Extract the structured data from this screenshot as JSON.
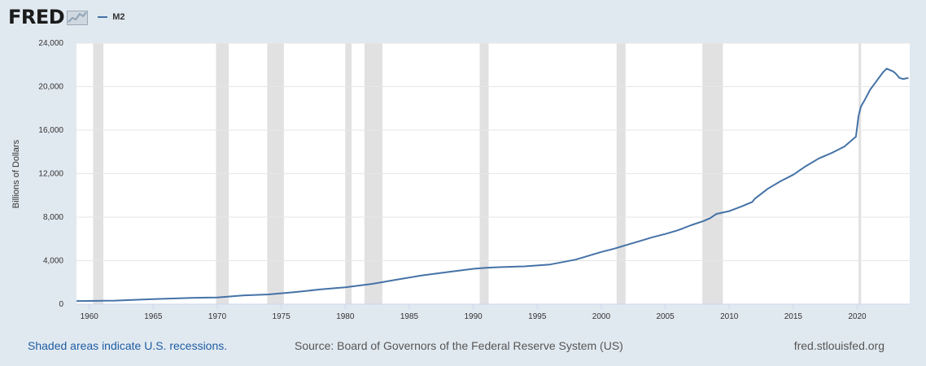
{
  "header": {
    "logo_text": "FRED"
  },
  "colors": {
    "series": "#4572a7",
    "recession": "#e1e1e1",
    "background": "#e1e9f0",
    "plot": "#ffffff",
    "grid": "#e6e6e6"
  },
  "chart_data": {
    "type": "line",
    "title": "",
    "xlabel": "",
    "ylabel": "Billions of Dollars",
    "xlim": [
      1959,
      2024.1
    ],
    "ylim": [
      0,
      24000
    ],
    "xticks": [
      1960,
      1965,
      1970,
      1975,
      1980,
      1985,
      1990,
      1995,
      2000,
      2005,
      2010,
      2015,
      2020
    ],
    "yticks": [
      0,
      4000,
      8000,
      12000,
      16000,
      20000,
      24000
    ],
    "xtick_labels": [
      "1960",
      "1965",
      "1970",
      "1975",
      "1980",
      "1985",
      "1990",
      "1995",
      "2000",
      "2005",
      "2010",
      "2015",
      "2020"
    ],
    "ytick_labels": [
      "0",
      "4,000",
      "8,000",
      "12,000",
      "16,000",
      "20,000",
      "24,000"
    ],
    "grid": true,
    "legend": "top-left",
    "recessions": [
      [
        1960.3,
        1961.1
      ],
      [
        1969.9,
        1970.9
      ],
      [
        1973.9,
        1975.2
      ],
      [
        1980.0,
        1980.5
      ],
      [
        1981.5,
        1982.9
      ],
      [
        1990.5,
        1991.2
      ],
      [
        2001.2,
        2001.9
      ],
      [
        2007.9,
        2009.5
      ],
      [
        2020.1,
        2020.3
      ]
    ],
    "series": [
      {
        "name": "M2",
        "x": [
          1959.0,
          1960.0,
          1962.0,
          1965.0,
          1968.0,
          1970.0,
          1972.0,
          1974.0,
          1976.0,
          1978.0,
          1980.0,
          1982.0,
          1983.0,
          1984.0,
          1986.0,
          1988.0,
          1990.0,
          1991.0,
          1992.0,
          1994.0,
          1996.0,
          1998.0,
          2000.0,
          2001.0,
          2002.0,
          2003.0,
          2004.0,
          2005.0,
          2006.0,
          2007.0,
          2008.0,
          2008.5,
          2009.0,
          2010.0,
          2011.0,
          2011.8,
          2012.0,
          2013.0,
          2014.0,
          2015.0,
          2016.0,
          2017.0,
          2018.0,
          2019.0,
          2019.9,
          2020.1,
          2020.3,
          2020.6,
          2021.0,
          2021.5,
          2022.0,
          2022.3,
          2022.8,
          2023.0,
          2023.3,
          2023.6,
          2024.0
        ],
        "values": [
          290,
          300,
          330,
          460,
          580,
          620,
          800,
          900,
          1100,
          1350,
          1550,
          1850,
          2050,
          2250,
          2650,
          2950,
          3250,
          3350,
          3400,
          3480,
          3650,
          4100,
          4800,
          5100,
          5450,
          5800,
          6150,
          6450,
          6800,
          7250,
          7650,
          7900,
          8300,
          8550,
          9000,
          9400,
          9700,
          10600,
          11300,
          11900,
          12700,
          13400,
          13900,
          14500,
          15400,
          17300,
          18200,
          18800,
          19700,
          20500,
          21300,
          21650,
          21400,
          21200,
          20800,
          20700,
          20800
        ]
      }
    ]
  },
  "footer": {
    "left": "Shaded areas indicate U.S. recessions.",
    "center": "Source: Board of Governors of the Federal Reserve System (US)",
    "right": "fred.stlouisfed.org"
  }
}
